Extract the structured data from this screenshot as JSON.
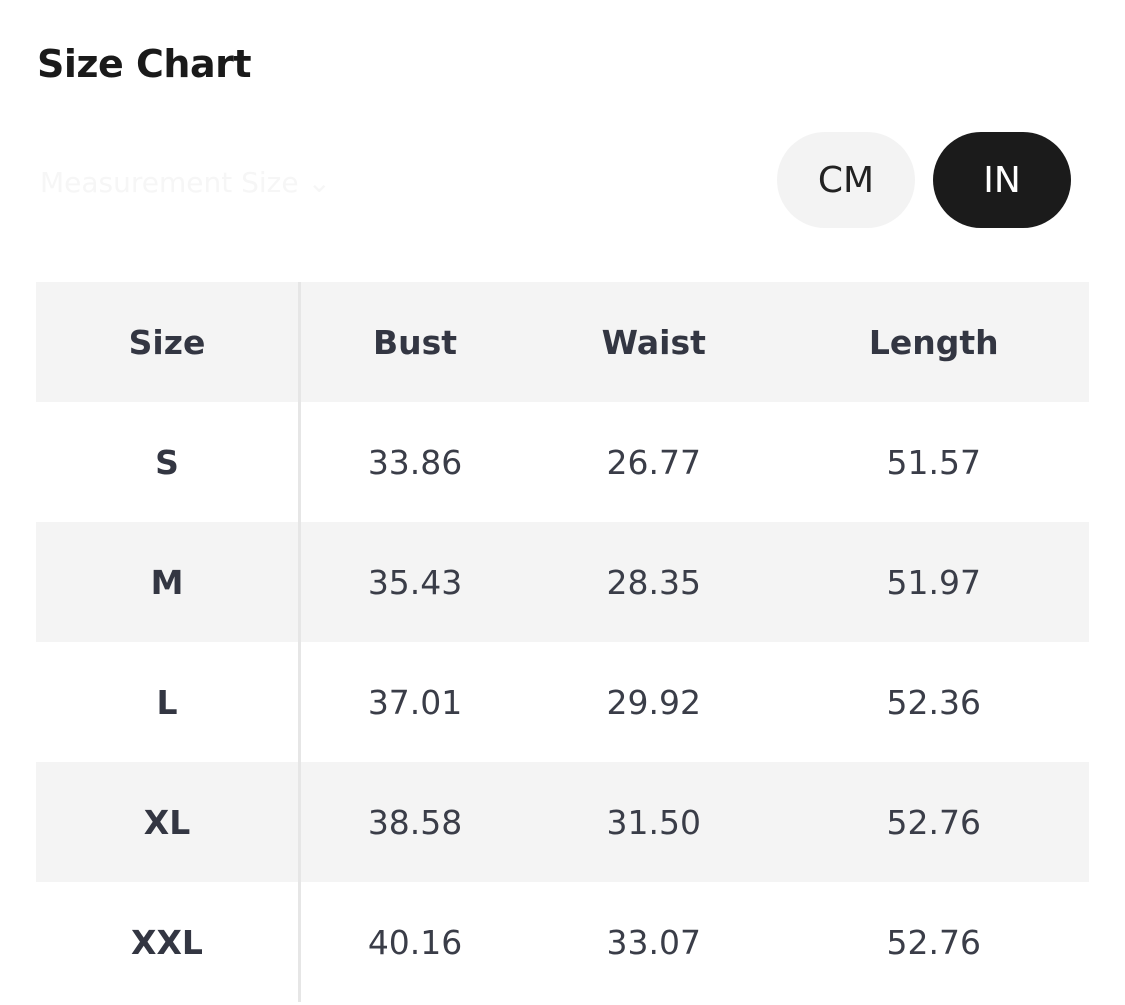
{
  "title": "Size Chart",
  "size_selector": {
    "label": "Measurement Size",
    "icon": "chevron-down-icon"
  },
  "units": {
    "cm": "CM",
    "in": "IN",
    "selected": "IN"
  },
  "table": {
    "headers": [
      "Size",
      "Bust",
      "Waist",
      "Length"
    ],
    "rows": [
      [
        "S",
        "33.86",
        "26.77",
        "51.57"
      ],
      [
        "M",
        "35.43",
        "28.35",
        "51.97"
      ],
      [
        "L",
        "37.01",
        "29.92",
        "52.36"
      ],
      [
        "XL",
        "38.58",
        "31.50",
        "52.76"
      ],
      [
        "XXL",
        "40.16",
        "33.07",
        "52.76"
      ]
    ]
  }
}
